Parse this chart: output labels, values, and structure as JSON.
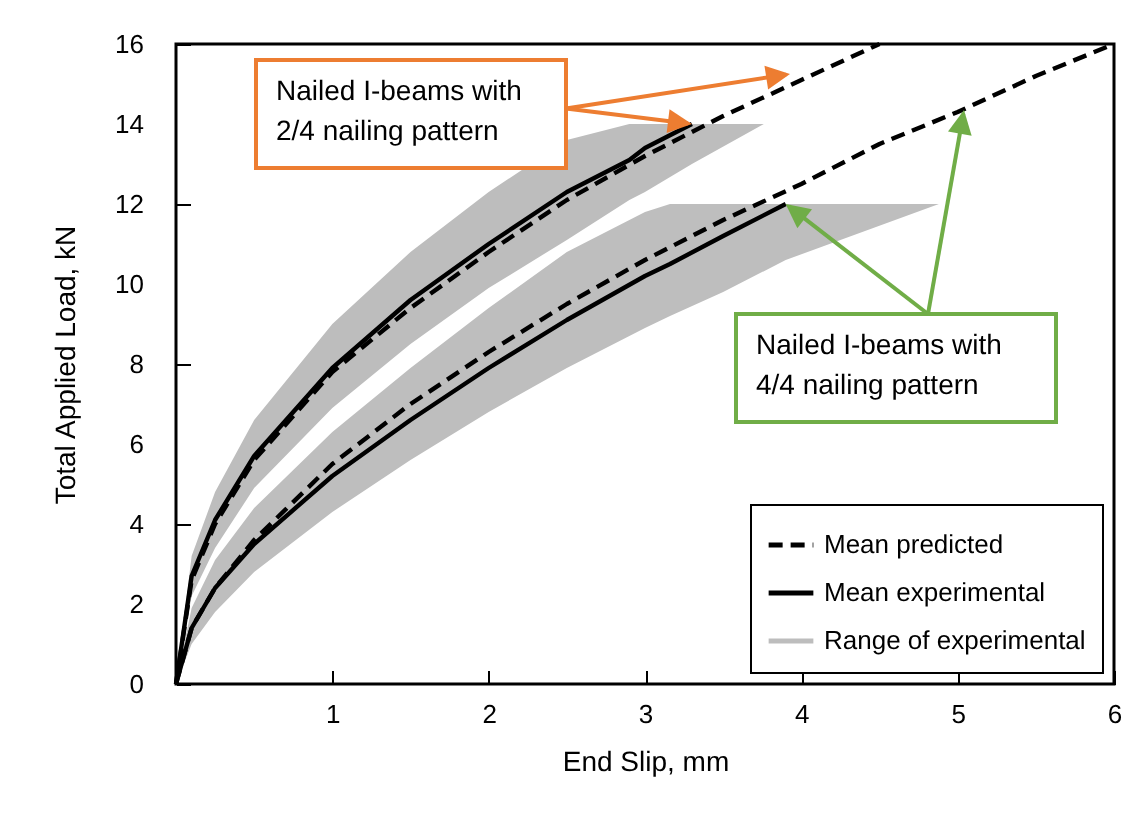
{
  "chart_data": {
    "type": "line",
    "xlabel": "End Slip, mm",
    "ylabel": "Total Applied Load, kN",
    "xlim": [
      0,
      6
    ],
    "ylim": [
      0,
      16
    ],
    "xticks": [
      {
        "value": 0,
        "label": null
      },
      1,
      2,
      3,
      4,
      5,
      6
    ],
    "yticks": [
      0,
      2,
      4,
      6,
      8,
      10,
      12,
      14,
      16
    ],
    "grid": false,
    "legend": "bottom right",
    "marker": "none",
    "series": [
      {
        "name": "Mean predicted",
        "line_style": "dashed",
        "color": "#000000",
        "x": [
          0,
          0.1,
          0.25,
          0.5,
          1,
          1.5,
          2,
          2.5,
          3,
          3.5,
          4,
          4.5
        ],
        "values": [
          0,
          2.6,
          4.0,
          5.6,
          7.8,
          9.4,
          10.8,
          12.1,
          13.2,
          14.2,
          15.1,
          16.0
        ]
      },
      {
        "name": "Mean experimental",
        "line_style": "solid",
        "color": "#000000",
        "x": [
          0,
          0.1,
          0.25,
          0.5,
          1,
          1.5,
          2,
          2.5,
          2.9,
          3,
          3.3,
          3.76
        ],
        "values": [
          0,
          2.7,
          4.1,
          5.7,
          7.9,
          9.6,
          11.0,
          12.3,
          13.1,
          13.4,
          14.0,
          null
        ],
        "lower": [
          0,
          2.2,
          3.4,
          4.9,
          6.9,
          8.5,
          9.9,
          11.1,
          12.1,
          12.3,
          13.0,
          14.0
        ],
        "upper": [
          0,
          3.2,
          4.8,
          6.6,
          9.0,
          10.8,
          12.3,
          13.6,
          14.0,
          14.0,
          14.0,
          14.0
        ]
      },
      {
        "line_style": "dashed",
        "color": "#000000",
        "x": [
          0,
          0.1,
          0.25,
          0.5,
          1,
          1.5,
          2,
          2.5,
          3,
          3.5,
          4,
          4.5,
          5,
          5.5,
          6
        ],
        "values": [
          0,
          1.4,
          2.4,
          3.6,
          5.5,
          7.0,
          8.3,
          9.5,
          10.6,
          11.6,
          12.5,
          13.5,
          14.3,
          15.2,
          16.0
        ]
      },
      {
        "line_style": "solid",
        "color": "#000000",
        "x": [
          0,
          0.1,
          0.25,
          0.5,
          1,
          1.5,
          2,
          2.5,
          3,
          3.16,
          3.5,
          3.9,
          4.88
        ],
        "values": [
          0,
          1.4,
          2.4,
          3.5,
          5.2,
          6.6,
          7.9,
          9.1,
          10.2,
          10.5,
          11.2,
          12.0,
          null
        ],
        "lower": [
          0,
          1.0,
          1.8,
          2.8,
          4.3,
          5.6,
          6.8,
          7.9,
          8.9,
          9.2,
          9.8,
          10.6,
          12.0
        ],
        "upper": [
          0,
          1.9,
          3.1,
          4.4,
          6.3,
          7.9,
          9.4,
          10.8,
          11.8,
          12.0,
          12.0,
          12.0,
          12.0
        ]
      }
    ],
    "annotations": [
      "Nailed I-beams with 2/4 nailing pattern",
      {
        "text": "Nailed I-beams with 4/4 nailing pattern",
        "x": 3.9,
        "y": 12.0
      },
      "Range of experimental"
    ]
  }
}
